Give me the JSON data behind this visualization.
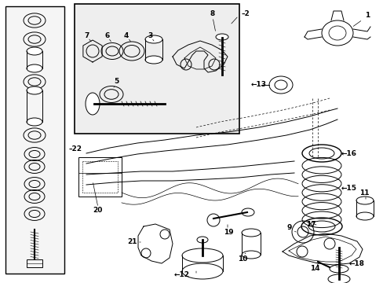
{
  "bg_color": "#ffffff",
  "line_color": "#000000",
  "figsize": [
    4.89,
    3.6
  ],
  "dpi": 100,
  "inset_bg": "#eeeeee",
  "label_font": 6.5
}
